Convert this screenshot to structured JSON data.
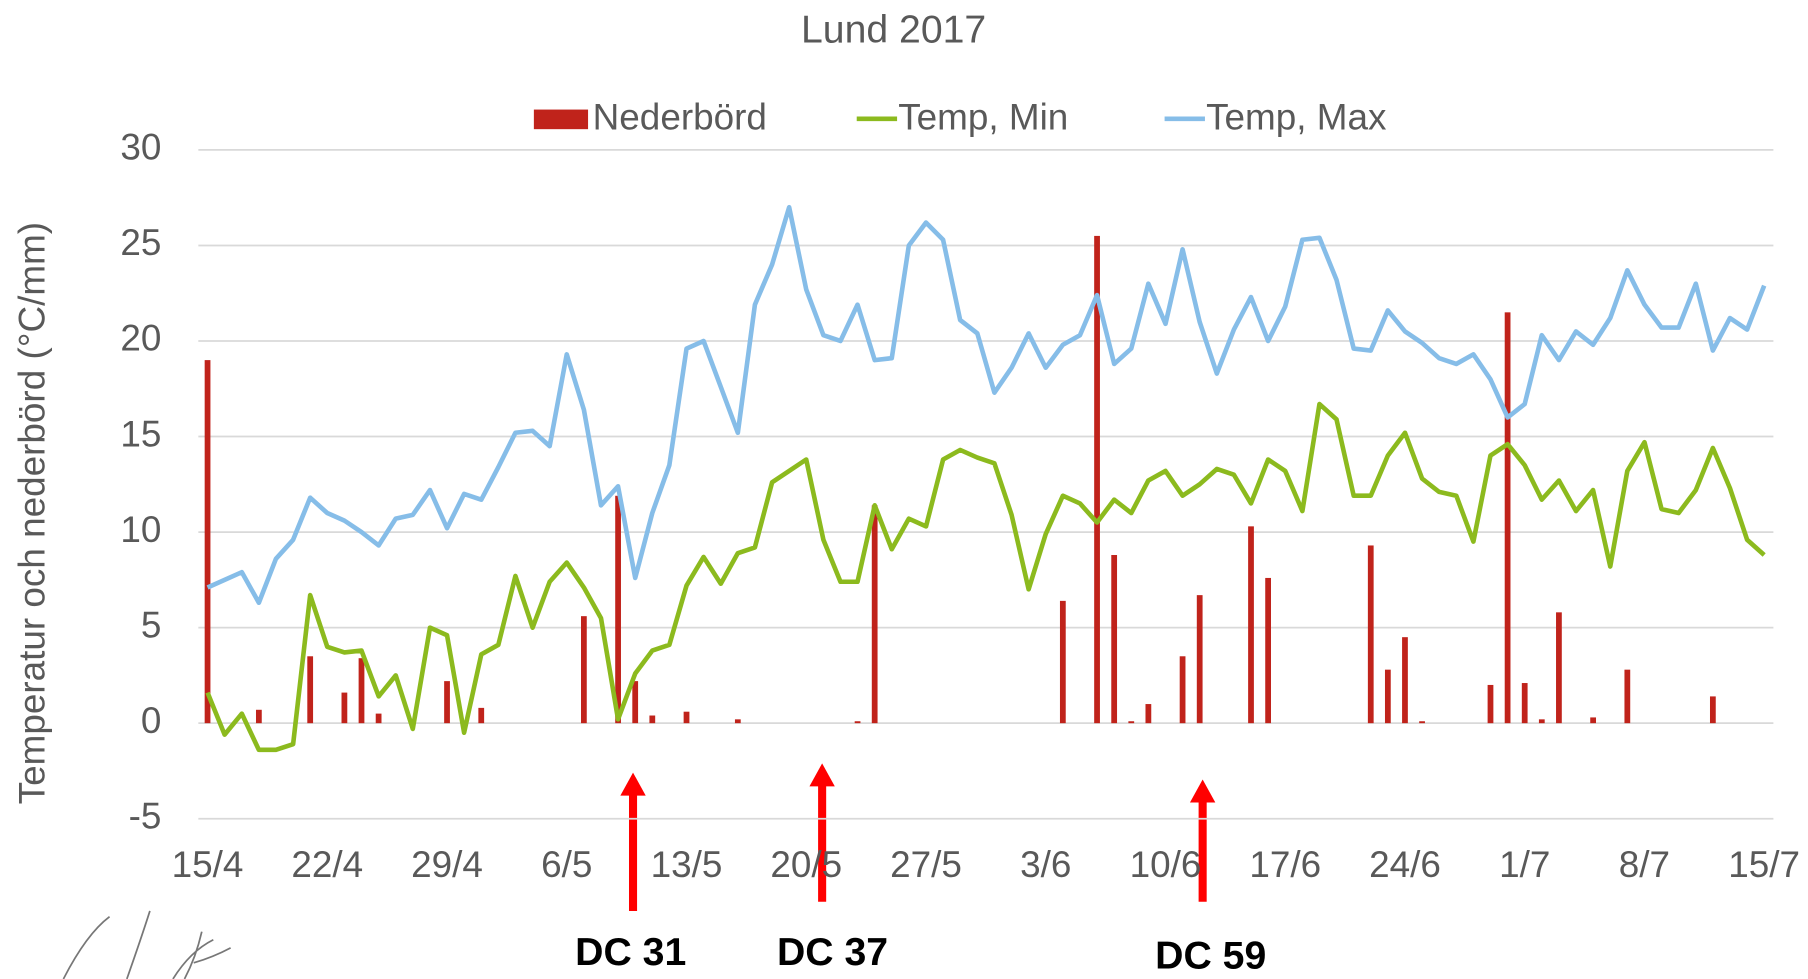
{
  "chart_data": {
    "type": "combo",
    "title": "Lund 2017",
    "y_label": "Temperatur och nederbörd (°C/mm)",
    "categories": [
      "15/4",
      null,
      null,
      null,
      null,
      null,
      null,
      "22/4",
      null,
      null,
      null,
      null,
      null,
      null,
      "29/4",
      null,
      null,
      null,
      null,
      null,
      null,
      "6/5",
      null,
      null,
      null,
      null,
      null,
      null,
      "13/5",
      null,
      null,
      null,
      null,
      null,
      null,
      "20/5",
      null,
      null,
      null,
      null,
      null,
      null,
      "27/5",
      null,
      null,
      null,
      null,
      null,
      null,
      "3/6",
      null,
      null,
      null,
      null,
      null,
      null,
      "10/6",
      null,
      null,
      null,
      null,
      null,
      null,
      "17/6",
      null,
      null,
      null,
      null,
      null,
      null,
      "24/6",
      null,
      null,
      null,
      null,
      null,
      null,
      "1/7",
      null,
      null,
      null,
      null,
      null,
      null,
      "8/7",
      null,
      null,
      null,
      null,
      null,
      null,
      "15/7"
    ],
    "series": [
      {
        "name": "Nederbörd",
        "type": "bar",
        "color": "#c0231b",
        "values": [
          19.0,
          0,
          0,
          0.7,
          0,
          0,
          3.5,
          0,
          1.6,
          3.4,
          0.5,
          0,
          0,
          0,
          2.2,
          0,
          0.8,
          0,
          0,
          0,
          0,
          0,
          5.6,
          0,
          11.9,
          2.2,
          0.4,
          0,
          0.6,
          0,
          0,
          0.2,
          0,
          0,
          0,
          0,
          0,
          0,
          0.1,
          11.4,
          0,
          0,
          0,
          0,
          0,
          0,
          0,
          0,
          0,
          0,
          6.4,
          0,
          25.5,
          8.8,
          0.1,
          1.0,
          0,
          3.5,
          6.7,
          0,
          0,
          10.3,
          7.6,
          0,
          0,
          0,
          0,
          0,
          9.3,
          2.8,
          4.5,
          0.1,
          0,
          0,
          0,
          2.0,
          21.5,
          2.1,
          0.2,
          5.8,
          0,
          0.3,
          0,
          2.8,
          0,
          0,
          0,
          0,
          1.4,
          0,
          0,
          0
        ]
      },
      {
        "name": "Temp, Min",
        "type": "line",
        "color": "#8cba1e",
        "values": [
          1.6,
          -0.6,
          0.5,
          -1.4,
          -1.4,
          -1.1,
          6.7,
          4.0,
          3.7,
          3.8,
          1.4,
          2.5,
          -0.3,
          5.0,
          4.6,
          -0.5,
          3.6,
          4.1,
          7.7,
          5.0,
          7.4,
          8.4,
          7.1,
          5.5,
          0.2,
          2.6,
          3.8,
          4.1,
          7.2,
          8.7,
          7.3,
          8.9,
          9.2,
          12.6,
          13.2,
          13.8,
          9.6,
          7.4,
          7.4,
          11.4,
          9.1,
          10.7,
          10.3,
          13.8,
          14.3,
          13.9,
          13.6,
          10.9,
          7.0,
          9.9,
          11.9,
          11.5,
          10.5,
          11.7,
          11.0,
          12.7,
          13.2,
          11.9,
          12.5,
          13.3,
          13.0,
          11.5,
          13.8,
          13.2,
          11.1,
          16.7,
          15.9,
          11.9,
          11.9,
          14.0,
          15.2,
          12.8,
          12.1,
          11.9,
          9.5,
          14.0,
          14.6,
          13.5,
          11.7,
          12.7,
          11.1,
          12.2,
          8.2,
          13.2,
          14.7,
          11.2,
          11.0,
          12.2,
          14.4,
          12.3,
          9.6,
          8.8
        ]
      },
      {
        "name": "Temp, Max",
        "type": "line",
        "color": "#86bde8",
        "values": [
          7.1,
          7.5,
          7.9,
          6.3,
          8.6,
          9.6,
          11.8,
          11.0,
          10.6,
          10.0,
          9.3,
          10.7,
          10.9,
          12.2,
          10.2,
          12.0,
          11.7,
          13.4,
          15.2,
          15.3,
          14.5,
          19.3,
          16.4,
          11.4,
          12.4,
          7.6,
          11.0,
          13.5,
          19.6,
          20.0,
          17.6,
          15.2,
          21.9,
          24.0,
          27.0,
          22.7,
          20.3,
          20.0,
          21.9,
          19.0,
          19.1,
          25.0,
          26.2,
          25.3,
          21.1,
          20.4,
          17.3,
          18.6,
          20.4,
          18.6,
          19.8,
          20.3,
          22.4,
          18.8,
          19.6,
          23.0,
          20.9,
          24.8,
          21.0,
          18.3,
          20.6,
          22.3,
          20.0,
          21.8,
          25.3,
          25.4,
          23.2,
          19.6,
          19.5,
          21.6,
          20.5,
          19.9,
          19.1,
          18.8,
          19.3,
          18.0,
          16.0,
          16.7,
          20.3,
          19.0,
          20.5,
          19.8,
          21.2,
          23.7,
          21.9,
          20.7,
          20.7,
          23.0,
          19.5,
          21.2,
          20.6,
          22.9
        ]
      }
    ],
    "ylim": [
      -5,
      30
    ],
    "yticks": [
      -5,
      0,
      5,
      10,
      15,
      20,
      25,
      30
    ],
    "grid": true,
    "legend": "top",
    "annotations": [
      "DC 31",
      "DC 37",
      "DC 59"
    ]
  }
}
